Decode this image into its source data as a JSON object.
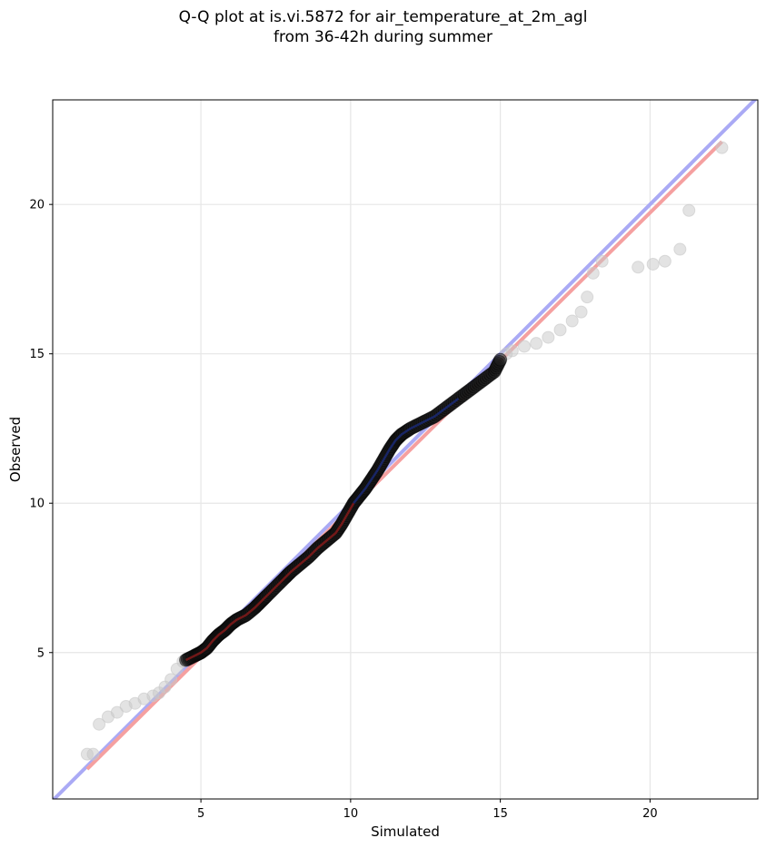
{
  "chart_data": {
    "type": "scatter",
    "title_lines": [
      "Q-Q plot at is.vi.5872 for air_temperature_at_2m_agl",
      "from 36-42h during summer"
    ],
    "xlabel": "Simulated",
    "ylabel": "Observed",
    "xlim": [
      0.05,
      23.6
    ],
    "ylim": [
      0.1,
      23.5
    ],
    "xticks": [
      5,
      10,
      15,
      20
    ],
    "yticks": [
      5,
      10,
      15,
      20
    ],
    "grid": true,
    "colors": {
      "reference_line": "#aaaaf5",
      "fit_line": "#f5a0a0",
      "points_outer": "#c8c8c8",
      "points_core": "#1a1a1a",
      "central_trace": "#8b1a1a",
      "central_trace_upper": "#1a2a7a",
      "grid": "#e6e6e6"
    },
    "reference_line": {
      "x": [
        0.05,
        23.6
      ],
      "y": [
        0.05,
        23.6
      ]
    },
    "fit_line": {
      "x": [
        1.2,
        22.4
      ],
      "y": [
        1.1,
        22.1
      ]
    },
    "outer_points": [
      [
        1.2,
        1.6
      ],
      [
        1.4,
        1.6
      ],
      [
        1.6,
        2.6
      ],
      [
        1.9,
        2.85
      ],
      [
        2.2,
        3.0
      ],
      [
        2.5,
        3.2
      ],
      [
        2.8,
        3.3
      ],
      [
        3.1,
        3.45
      ],
      [
        3.4,
        3.55
      ],
      [
        3.6,
        3.65
      ],
      [
        3.8,
        3.85
      ],
      [
        4.0,
        4.1
      ],
      [
        4.2,
        4.45
      ],
      [
        4.4,
        4.7
      ],
      [
        15.2,
        15.0
      ],
      [
        15.4,
        15.1
      ],
      [
        15.8,
        15.25
      ],
      [
        16.2,
        15.35
      ],
      [
        16.6,
        15.55
      ],
      [
        17.0,
        15.8
      ],
      [
        17.4,
        16.1
      ],
      [
        17.7,
        16.4
      ],
      [
        17.9,
        16.9
      ],
      [
        18.1,
        17.7
      ],
      [
        18.4,
        18.1
      ],
      [
        19.6,
        17.9
      ],
      [
        20.1,
        18.0
      ],
      [
        20.5,
        18.1
      ],
      [
        21.0,
        18.5
      ],
      [
        21.3,
        19.8
      ],
      [
        22.4,
        21.9
      ]
    ],
    "core_points": [
      [
        4.5,
        4.75
      ],
      [
        4.8,
        4.9
      ],
      [
        5.0,
        5.0
      ],
      [
        5.2,
        5.15
      ],
      [
        5.4,
        5.4
      ],
      [
        5.6,
        5.6
      ],
      [
        5.8,
        5.75
      ],
      [
        6.0,
        5.95
      ],
      [
        6.2,
        6.1
      ],
      [
        6.5,
        6.25
      ],
      [
        6.8,
        6.5
      ],
      [
        7.0,
        6.7
      ],
      [
        7.2,
        6.9
      ],
      [
        7.5,
        7.2
      ],
      [
        7.8,
        7.5
      ],
      [
        8.0,
        7.7
      ],
      [
        8.3,
        7.95
      ],
      [
        8.6,
        8.2
      ],
      [
        8.9,
        8.5
      ],
      [
        9.2,
        8.75
      ],
      [
        9.5,
        9.0
      ],
      [
        9.7,
        9.3
      ],
      [
        9.9,
        9.65
      ],
      [
        10.1,
        10.0
      ],
      [
        10.3,
        10.25
      ],
      [
        10.5,
        10.5
      ],
      [
        10.7,
        10.8
      ],
      [
        10.9,
        11.1
      ],
      [
        11.1,
        11.45
      ],
      [
        11.3,
        11.8
      ],
      [
        11.5,
        12.1
      ],
      [
        11.7,
        12.3
      ],
      [
        12.0,
        12.5
      ],
      [
        12.4,
        12.7
      ],
      [
        12.8,
        12.9
      ],
      [
        13.2,
        13.2
      ],
      [
        13.6,
        13.5
      ],
      [
        14.0,
        13.8
      ],
      [
        14.4,
        14.1
      ],
      [
        14.8,
        14.4
      ],
      [
        15.0,
        14.8
      ]
    ]
  }
}
